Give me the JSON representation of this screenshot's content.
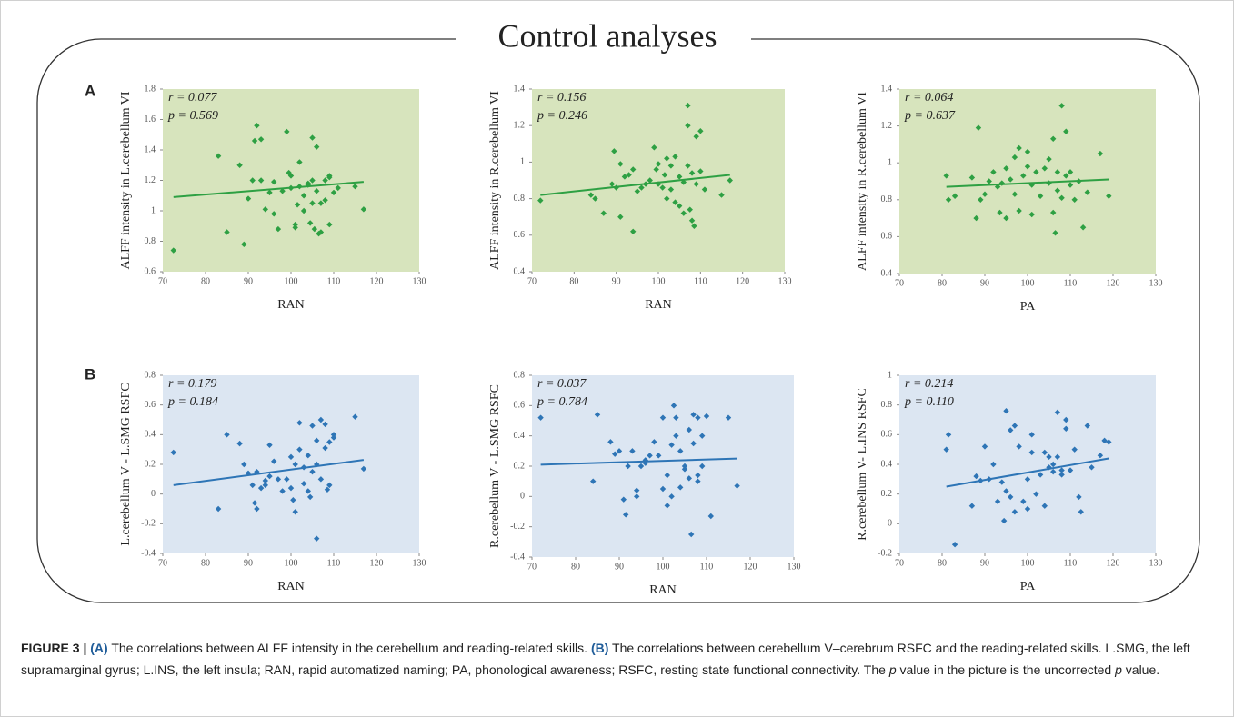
{
  "figure_title": "Control analyses",
  "panel_labels": [
    "A",
    "B"
  ],
  "caption": [
    "FIGURE 3 |",
    "(A)",
    "The correlations between ALFF intensity in the cerebellum and reading-related skills.",
    "(B)",
    "The correlations between cerebellum V–cerebrum RSFC and the reading-related skills. L.SMG, the left supramarginal gyrus; L.INS, the left insula; RAN, rapid automatized naming; PA, phonological awareness; RSFC, resting state functional connectivity. The",
    "p",
    "value in the picture is the uncorrected",
    "p",
    "value."
  ],
  "chart_data": [
    {
      "type": "scatter",
      "x_label": "RAN",
      "y_label": "ALFF intensity in L.cerebellum VI",
      "annotations": [
        "r = 0.077",
        "p = 0.569"
      ],
      "color": "#2ea043",
      "background": "#d7e4bd",
      "x": [
        72.5,
        83,
        85,
        88,
        89,
        90,
        91,
        91.5,
        92,
        93,
        93,
        94,
        95,
        96,
        96,
        97,
        98,
        99,
        99.5,
        100,
        100,
        101,
        101,
        101.5,
        102,
        102,
        103,
        103,
        104,
        104,
        104.5,
        105,
        105,
        105,
        105.5,
        106,
        106,
        106.5,
        107,
        107,
        108,
        108,
        109,
        109,
        109,
        110,
        111,
        115,
        117
      ],
      "y": [
        0.74,
        1.36,
        0.86,
        1.3,
        0.78,
        1.08,
        1.2,
        1.46,
        1.56,
        1.47,
        1.2,
        1.01,
        1.12,
        1.19,
        0.98,
        0.88,
        1.13,
        1.52,
        1.25,
        1.23,
        1.15,
        0.91,
        0.89,
        1.04,
        1.16,
        1.32,
        1.0,
        1.1,
        1.17,
        1.18,
        0.92,
        1.48,
        1.2,
        1.05,
        0.88,
        1.42,
        1.13,
        0.85,
        1.05,
        0.86,
        1.2,
        1.07,
        1.23,
        1.22,
        0.91,
        1.12,
        1.15,
        1.16,
        1.01
      ],
      "trendline": {
        "x": [
          72.5,
          117
        ],
        "y": [
          1.09,
          1.19
        ]
      },
      "xlim": [
        70,
        130
      ],
      "xticks": [
        70,
        80,
        90,
        100,
        110,
        120,
        130
      ],
      "ylim": [
        0.6,
        1.8
      ],
      "yticks": [
        0.6,
        0.8,
        1,
        1.2,
        1.4,
        1.6,
        1.8
      ]
    },
    {
      "type": "scatter",
      "x_label": "RAN",
      "y_label": "ALFF intensity in R.cerebellum VI",
      "annotations": [
        "r = 0.156",
        "p = 0.246"
      ],
      "color": "#2ea043",
      "background": "#d7e4bd",
      "x": [
        72,
        84,
        85,
        87,
        89,
        89.5,
        90,
        91,
        91,
        92,
        93,
        94,
        94,
        95,
        96,
        97,
        98,
        99,
        99.5,
        100,
        100,
        101,
        101.5,
        102,
        102,
        103,
        103,
        104,
        104,
        105,
        105,
        106,
        106,
        107,
        107,
        107,
        107.5,
        108,
        108,
        108.5,
        109,
        109,
        110,
        110,
        111,
        115,
        117
      ],
      "y": [
        0.79,
        0.82,
        0.8,
        0.72,
        0.88,
        1.06,
        0.86,
        0.99,
        0.7,
        0.92,
        0.93,
        0.96,
        0.62,
        0.84,
        0.86,
        0.88,
        0.9,
        1.08,
        0.96,
        0.99,
        0.88,
        0.86,
        0.93,
        1.02,
        0.8,
        0.98,
        0.85,
        1.03,
        0.78,
        0.92,
        0.76,
        0.89,
        0.72,
        1.2,
        1.31,
        0.98,
        0.74,
        0.94,
        0.68,
        0.65,
        1.14,
        0.88,
        1.17,
        0.95,
        0.85,
        0.82,
        0.9
      ],
      "trendline": {
        "x": [
          72,
          117
        ],
        "y": [
          0.82,
          0.93
        ]
      },
      "xlim": [
        70,
        130
      ],
      "xticks": [
        70,
        80,
        90,
        100,
        110,
        120,
        130
      ],
      "ylim": [
        0.4,
        1.4
      ],
      "yticks": [
        0.4,
        0.6,
        0.8,
        1,
        1.2,
        1.4
      ]
    },
    {
      "type": "scatter",
      "x_label": "PA",
      "y_label": "ALFF intensity in R.cerebellum VI",
      "annotations": [
        "r = 0.064",
        "p = 0.637"
      ],
      "color": "#2ea043",
      "background": "#d7e4bd",
      "x": [
        81,
        81.5,
        83,
        87,
        88,
        88.5,
        89,
        90,
        91,
        92,
        93,
        93.5,
        94,
        95,
        95,
        96,
        97,
        97,
        98,
        98,
        99,
        100,
        100,
        101,
        101,
        102,
        103,
        104,
        105,
        105,
        106,
        106,
        106.5,
        107,
        107,
        108,
        108,
        109,
        109,
        110,
        110,
        111,
        112,
        113,
        114,
        117,
        119
      ],
      "y": [
        0.93,
        0.8,
        0.82,
        0.92,
        0.7,
        1.19,
        0.8,
        0.83,
        0.9,
        0.95,
        0.87,
        0.73,
        0.89,
        0.97,
        0.7,
        0.91,
        1.03,
        0.83,
        1.08,
        0.74,
        0.93,
        1.06,
        0.98,
        0.88,
        0.72,
        0.95,
        0.82,
        0.97,
        1.02,
        0.89,
        1.13,
        0.73,
        0.62,
        0.95,
        0.85,
        1.31,
        0.81,
        1.17,
        0.93,
        0.95,
        0.88,
        0.8,
        0.9,
        0.65,
        0.84,
        1.05,
        0.82
      ],
      "trendline": {
        "x": [
          81,
          119
        ],
        "y": [
          0.87,
          0.91
        ]
      },
      "xlim": [
        70,
        130
      ],
      "xticks": [
        70,
        80,
        90,
        100,
        110,
        120,
        130
      ],
      "ylim": [
        0.4,
        1.4
      ],
      "yticks": [
        0.4,
        0.6,
        0.8,
        1,
        1.2,
        1.4
      ]
    },
    {
      "type": "scatter",
      "x_label": "RAN",
      "y_label": "L.cerebellum V - L.SMG RSFC",
      "annotations": [
        "r = 0.179",
        "p = 0.184"
      ],
      "color": "#2e75b6",
      "background": "#dce6f2",
      "x": [
        72.5,
        83,
        85,
        88,
        89,
        90,
        91,
        91.5,
        92,
        92,
        93,
        94,
        94,
        95,
        95,
        96,
        97,
        98,
        99,
        100,
        100,
        100.5,
        101,
        101,
        102,
        102,
        103,
        103,
        104,
        104,
        104.5,
        105,
        105,
        106,
        106,
        106,
        107,
        107,
        108,
        108,
        108.5,
        109,
        109,
        110,
        110,
        115,
        117
      ],
      "y": [
        0.28,
        -0.1,
        0.4,
        0.34,
        0.2,
        0.14,
        0.06,
        -0.06,
        -0.1,
        0.15,
        0.04,
        0.09,
        0.06,
        0.33,
        0.12,
        0.22,
        0.1,
        0.02,
        0.1,
        0.25,
        0.04,
        -0.04,
        -0.12,
        0.2,
        0.48,
        0.3,
        0.18,
        0.07,
        0.26,
        0.02,
        -0.02,
        0.46,
        0.15,
        -0.3,
        0.36,
        0.2,
        0.5,
        0.1,
        0.47,
        0.31,
        0.03,
        0.35,
        0.06,
        0.38,
        0.4,
        0.52,
        0.17
      ],
      "trendline": {
        "x": [
          72.5,
          117
        ],
        "y": [
          0.06,
          0.23
        ]
      },
      "xlim": [
        70,
        130
      ],
      "xticks": [
        70,
        80,
        90,
        100,
        110,
        120,
        130
      ],
      "ylim": [
        -0.4,
        0.8
      ],
      "yticks": [
        -0.4,
        -0.2,
        0,
        0.2,
        0.4,
        0.6,
        0.8
      ]
    },
    {
      "type": "scatter",
      "x_label": "RAN",
      "y_label": "R.cerebellum V - L.SMG RSFC",
      "annotations": [
        "r = 0.037",
        "p = 0.784"
      ],
      "color": "#2e75b6",
      "background": "#dce6f2",
      "x": [
        72,
        84,
        85,
        88,
        89,
        90,
        91,
        91.5,
        92,
        93,
        94,
        94,
        95,
        96,
        96,
        97,
        98,
        99,
        100,
        100,
        101,
        101,
        102,
        102,
        102.5,
        103,
        103,
        104,
        104,
        105,
        105,
        106,
        106,
        106.5,
        107,
        107,
        108,
        108,
        108,
        109,
        109,
        110,
        111,
        115,
        117
      ],
      "y": [
        0.52,
        0.1,
        0.54,
        0.36,
        0.28,
        0.3,
        -0.02,
        -0.12,
        0.2,
        0.3,
        0.04,
        0.0,
        0.2,
        0.24,
        0.22,
        0.27,
        0.36,
        0.27,
        0.52,
        0.05,
        0.14,
        -0.06,
        0.34,
        0.0,
        0.6,
        0.52,
        0.4,
        0.06,
        0.3,
        0.2,
        0.18,
        0.44,
        0.12,
        -0.25,
        0.54,
        0.35,
        0.52,
        0.14,
        0.1,
        0.4,
        0.2,
        0.53,
        -0.13,
        0.52,
        0.07
      ],
      "trendline": {
        "x": [
          72,
          117
        ],
        "y": [
          0.21,
          0.25
        ]
      },
      "xlim": [
        70,
        130
      ],
      "xticks": [
        70,
        80,
        90,
        100,
        110,
        120,
        130
      ],
      "ylim": [
        -0.4,
        0.8
      ],
      "yticks": [
        -0.4,
        -0.2,
        0,
        0.2,
        0.4,
        0.6,
        0.8
      ]
    },
    {
      "type": "scatter",
      "x_label": "PA",
      "y_label": "R.cerebellum V- L.INS RSFC",
      "annotations": [
        "r = 0.214",
        "p = 0.110"
      ],
      "color": "#2e75b6",
      "background": "#dce6f2",
      "x": [
        81,
        81.5,
        83,
        87,
        88,
        89,
        90,
        91,
        92,
        93,
        94,
        94.5,
        95,
        95,
        96,
        96,
        97,
        97,
        98,
        99,
        100,
        100,
        101,
        101,
        102,
        103,
        104,
        104,
        105,
        105,
        106,
        106,
        107,
        107,
        108,
        108,
        109,
        109,
        110,
        111,
        112,
        112.5,
        114,
        115,
        117,
        118,
        119
      ],
      "y": [
        0.5,
        0.6,
        -0.14,
        0.12,
        0.32,
        0.29,
        0.52,
        0.3,
        0.4,
        0.15,
        0.28,
        0.02,
        0.76,
        0.22,
        0.63,
        0.18,
        0.66,
        0.08,
        0.52,
        0.15,
        0.1,
        0.3,
        0.48,
        0.6,
        0.2,
        0.33,
        0.48,
        0.12,
        0.45,
        0.38,
        0.4,
        0.35,
        0.75,
        0.45,
        0.36,
        0.33,
        0.7,
        0.64,
        0.36,
        0.5,
        0.18,
        0.08,
        0.66,
        0.38,
        0.46,
        0.56,
        0.55
      ],
      "trendline": {
        "x": [
          81,
          119
        ],
        "y": [
          0.25,
          0.44
        ]
      },
      "xlim": [
        70,
        130
      ],
      "xticks": [
        70,
        80,
        90,
        100,
        110,
        120,
        130
      ],
      "ylim": [
        -0.2,
        1
      ],
      "yticks": [
        -0.2,
        0,
        0.2,
        0.4,
        0.6,
        0.8,
        1
      ]
    }
  ]
}
